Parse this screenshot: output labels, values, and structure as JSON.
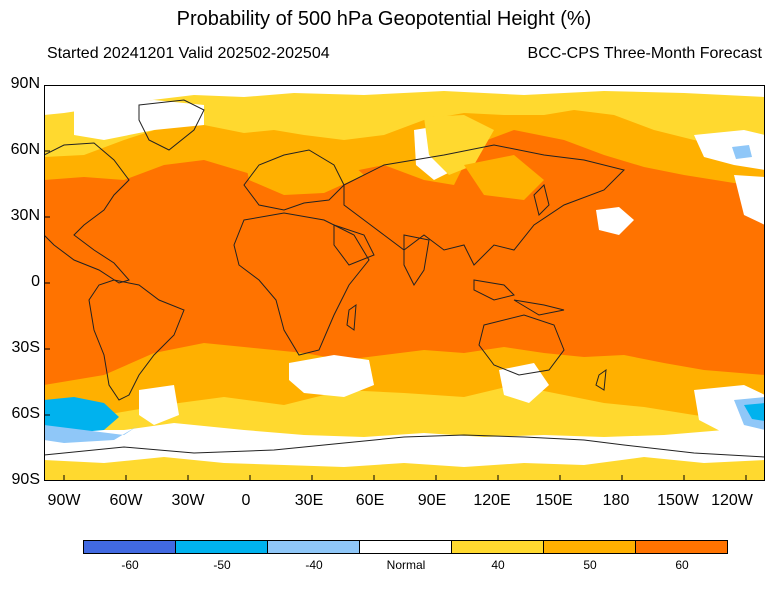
{
  "header": {
    "title": "Probability of 500 hPa Geopotential Height (%)",
    "subtitle_left": "Started 20241201  Valid 202502-202504",
    "subtitle_right": "BCC-CPS Three-Month Forecast"
  },
  "axes": {
    "lat_labels": [
      "90N",
      "60N",
      "30N",
      "0",
      "30S",
      "60S",
      "90S"
    ],
    "lon_labels": [
      "90W",
      "60W",
      "30W",
      "0",
      "30E",
      "60E",
      "90E",
      "120E",
      "150E",
      "180",
      "150W",
      "120W"
    ]
  },
  "legend": {
    "colors": [
      "#4169e1",
      "#00b2ee",
      "#8fc7f8",
      "#ffffff",
      "#ffd92f",
      "#ffb000",
      "#ff7300"
    ],
    "labels": [
      "-60",
      "-50",
      "-40",
      "Normal",
      "40",
      "50",
      "60"
    ]
  },
  "colors": {
    "background": "#ffffff",
    "coast": "#222222",
    "frame": "#000000"
  }
}
